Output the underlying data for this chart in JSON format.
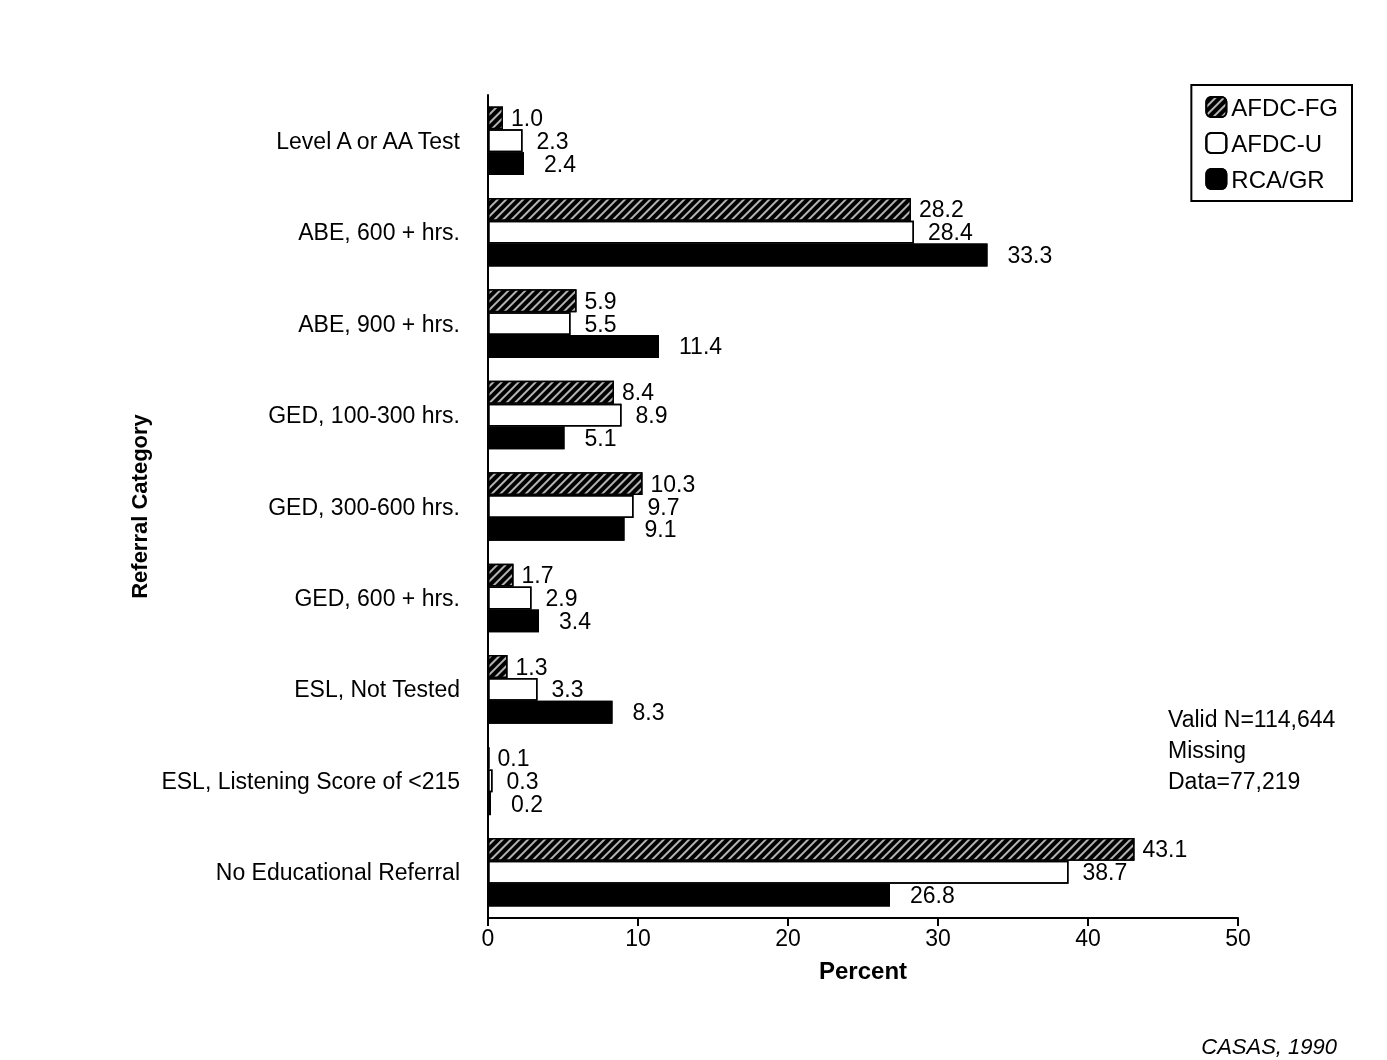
{
  "chart_data": {
    "type": "bar",
    "orientation": "horizontal",
    "xlabel": "Percent",
    "ylabel": "Referral Category",
    "categories": [
      "Level A or AA Test",
      "ABE, 600 + hrs.",
      "ABE, 900 + hrs.",
      "GED, 100-300 hrs.",
      "GED, 300-600 hrs.",
      "GED, 600 + hrs.",
      "ESL, Not Tested",
      "ESL, Listening Score of <215",
      "No Educational Referral"
    ],
    "series": [
      {
        "name": "AFDC-FG",
        "color": "#000000",
        "values": [
          1.0,
          28.2,
          5.9,
          8.4,
          10.3,
          1.7,
          1.3,
          0.1,
          43.1
        ],
        "value_labels": [
          "1.0",
          "28.2",
          "5.9",
          "8.4",
          "10.3",
          "1.7",
          "1.3",
          "0.1",
          "43.1"
        ]
      },
      {
        "name": "AFDC-U",
        "color": "#ffffff",
        "values": [
          2.3,
          28.4,
          5.5,
          8.9,
          9.7,
          2.9,
          3.3,
          0.3,
          38.7
        ],
        "value_labels": [
          "2.3",
          "28.4",
          "5.5",
          "8.9",
          "9.7",
          "2.9",
          "3.3",
          "0.3",
          "38.7"
        ]
      },
      {
        "name": "RCA/GR",
        "color": "#000000",
        "values": [
          2.4,
          33.3,
          11.4,
          5.1,
          9.1,
          3.4,
          8.3,
          0.2,
          26.8
        ],
        "value_labels": [
          "2.4",
          "33.3",
          "11.4",
          "5.1",
          "9.1",
          "3.4",
          "8.3",
          "0.2",
          "26.8"
        ]
      }
    ],
    "xlim": [
      0,
      50
    ],
    "xticks": [
      0,
      10,
      20,
      30,
      40,
      50
    ],
    "grid": false,
    "legend": "top right",
    "annotations": [
      "Valid N=114,644\nMissing\nData=77,219",
      "CASAS, 1990"
    ]
  }
}
